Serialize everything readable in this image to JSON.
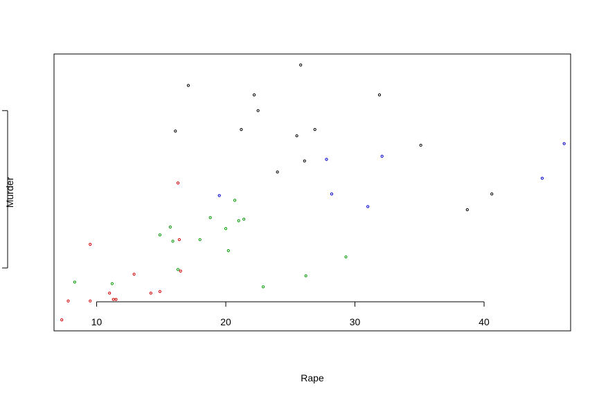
{
  "chart_data": {
    "type": "scatter",
    "title": "",
    "xlabel": "Rape",
    "ylabel": "Murder",
    "xlim": [
      6.7,
      46.7
    ],
    "ylim": [
      0.0,
      17.6
    ],
    "x_ticks": [
      10,
      20,
      30,
      40
    ],
    "x_tick_labels": [
      "10",
      "20",
      "30",
      "40"
    ],
    "y_ticks": [
      4,
      14
    ],
    "y_tick_labels": [
      "",
      ""
    ],
    "grid": false,
    "legend": "none",
    "colors": {
      "group1": "#000000",
      "group2": "#0000cc",
      "group3": "#009900",
      "group4": "#cc0000"
    },
    "series": [
      {
        "color_key": "group1",
        "points": [
          [
            25.8,
            16.9
          ],
          [
            17.1,
            15.6
          ],
          [
            22.2,
            15.0
          ],
          [
            31.9,
            15.0
          ],
          [
            22.5,
            14.0
          ],
          [
            16.1,
            12.7
          ],
          [
            21.2,
            12.8
          ],
          [
            26.9,
            12.8
          ],
          [
            25.5,
            12.4
          ],
          [
            35.1,
            11.8
          ],
          [
            26.1,
            10.8
          ],
          [
            24.0,
            10.1
          ],
          [
            40.6,
            8.7
          ],
          [
            38.7,
            7.7
          ]
        ]
      },
      {
        "color_key": "group2",
        "points": [
          [
            46.2,
            11.9
          ],
          [
            44.5,
            9.7
          ],
          [
            32.1,
            11.1
          ],
          [
            27.8,
            10.9
          ],
          [
            28.2,
            8.7
          ],
          [
            31.0,
            7.9
          ],
          [
            19.5,
            8.6
          ]
        ]
      },
      {
        "color_key": "group3",
        "points": [
          [
            20.7,
            8.3
          ],
          [
            21.4,
            7.1
          ],
          [
            21.0,
            7.0
          ],
          [
            18.8,
            7.2
          ],
          [
            20.0,
            6.5
          ],
          [
            15.7,
            6.6
          ],
          [
            14.9,
            6.1
          ],
          [
            15.9,
            5.7
          ],
          [
            18.0,
            5.8
          ],
          [
            20.2,
            5.1
          ],
          [
            29.3,
            4.7
          ],
          [
            16.3,
            3.9
          ],
          [
            26.2,
            3.5
          ],
          [
            8.3,
            3.1
          ],
          [
            11.2,
            3.0
          ],
          [
            22.9,
            2.8
          ]
        ]
      },
      {
        "color_key": "group4",
        "points": [
          [
            16.3,
            9.4
          ],
          [
            9.5,
            5.5
          ],
          [
            16.4,
            5.8
          ],
          [
            16.5,
            3.8
          ],
          [
            12.9,
            3.6
          ],
          [
            14.2,
            2.4
          ],
          [
            14.9,
            2.5
          ],
          [
            11.0,
            2.4
          ],
          [
            7.8,
            1.9
          ],
          [
            9.5,
            1.9
          ],
          [
            11.3,
            2.0
          ],
          [
            11.5,
            2.0
          ],
          [
            7.3,
            0.7
          ]
        ]
      }
    ]
  }
}
